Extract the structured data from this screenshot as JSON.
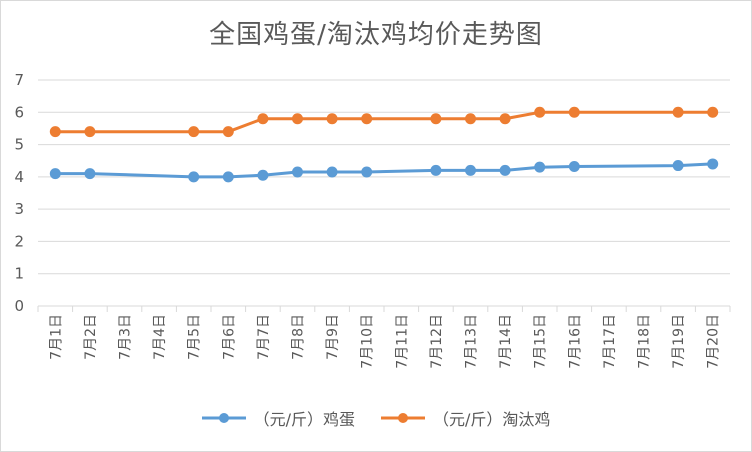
{
  "chart_data": {
    "type": "line",
    "title": "全国鸡蛋/淘汰鸡均价走势图",
    "xlabel": "",
    "ylabel": "",
    "ylim": [
      0,
      7
    ],
    "yticks": [
      "0",
      "1",
      "2",
      "3",
      "4",
      "5",
      "6",
      "7"
    ],
    "grid": true,
    "legend_position": "bottom",
    "categories": [
      "7月1日",
      "7月2日",
      "7月3日",
      "7月4日",
      "7月5日",
      "7月6日",
      "7月7日",
      "7月8日",
      "7月9日",
      "7月10日",
      "7月11日",
      "7月12日",
      "7月13日",
      "7月14日",
      "7月15日",
      "7月16日",
      "7月17日",
      "7月18日",
      "7月19日",
      "7月20日"
    ],
    "series": [
      {
        "name": "（元/斤）鸡蛋",
        "color": "#5b9bd5",
        "values": [
          4.1,
          4.1,
          null,
          null,
          4.0,
          4.0,
          4.05,
          4.15,
          4.15,
          4.15,
          null,
          4.2,
          4.2,
          4.2,
          4.3,
          4.32,
          null,
          null,
          4.35,
          4.4
        ]
      },
      {
        "name": "（元/斤）淘汰鸡",
        "color": "#ed7d31",
        "values": [
          5.4,
          5.4,
          null,
          null,
          5.4,
          5.4,
          5.8,
          5.8,
          5.8,
          5.8,
          null,
          5.8,
          5.8,
          5.8,
          6.0,
          6.0,
          null,
          null,
          6.0,
          6.0
        ]
      }
    ]
  }
}
